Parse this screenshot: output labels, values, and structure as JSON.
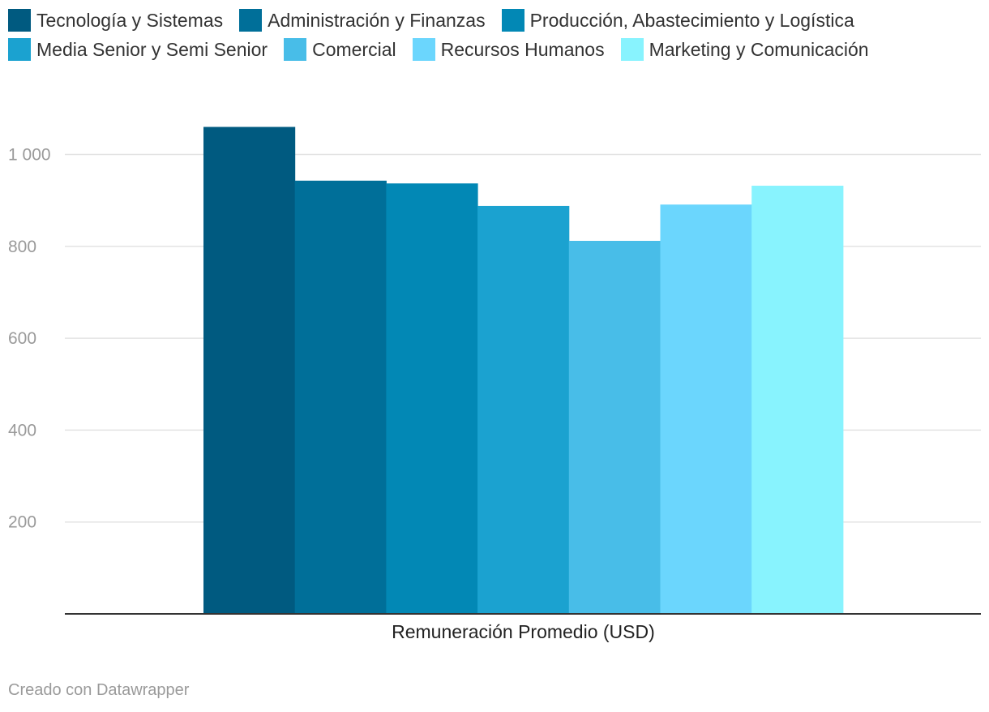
{
  "chart_data": {
    "type": "bar",
    "xlabel": "Remuneración Promedio (USD)",
    "ylabel": "",
    "ylim": [
      0,
      1100
    ],
    "yticks": [
      {
        "value": 200,
        "label": "200"
      },
      {
        "value": 400,
        "label": "400"
      },
      {
        "value": 600,
        "label": "600"
      },
      {
        "value": 800,
        "label": "800"
      },
      {
        "value": 1000,
        "label": "1 000"
      }
    ],
    "grid": true,
    "legend_position": "top",
    "series": [
      {
        "name": "Tecnología y Sistemas",
        "values": [
          1060
        ],
        "color": "#005a80"
      },
      {
        "name": "Administración y Finanzas",
        "values": [
          943
        ],
        "color": "#006f99"
      },
      {
        "name": "Producción, Abastecimiento y Logística",
        "values": [
          937
        ],
        "color": "#0288b5"
      },
      {
        "name": "Media Senior y Semi Senior",
        "values": [
          888
        ],
        "color": "#1ba2d0"
      },
      {
        "name": "Comercial",
        "values": [
          812
        ],
        "color": "#48bde8"
      },
      {
        "name": "Recursos Humanos",
        "values": [
          891
        ],
        "color": "#6bd6fd"
      },
      {
        "name": "Marketing y Comunicación",
        "values": [
          932
        ],
        "color": "#88f3fe"
      }
    ]
  },
  "footer": {
    "credit": "Creado con Datawrapper"
  }
}
